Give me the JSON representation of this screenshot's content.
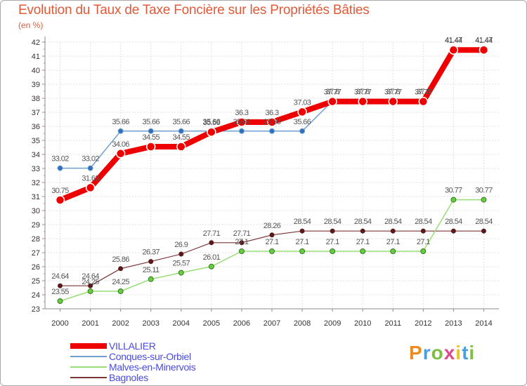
{
  "title": "Evolution du Taux de Taxe Foncière sur les Propriétés Bâties",
  "subtitle": "(en %)",
  "brand": {
    "text": "Proxiti",
    "colors": [
      "#f08c1e",
      "#4aa0d8",
      "#7cc040",
      "#e04a8c",
      "#f2c318",
      "#4aa0d8",
      "#7cc040"
    ]
  },
  "chart_data": {
    "type": "line",
    "title": "Evolution du Taux de Taxe Foncière sur les Propriétés Bâties",
    "ylabel": "(en %)",
    "xlabel": "",
    "grid": true,
    "ylim": [
      23,
      42
    ],
    "categories": [
      "2000",
      "2001",
      "2002",
      "2003",
      "2004",
      "2005",
      "2006",
      "2007",
      "2008",
      "2009",
      "2010",
      "2011",
      "2012",
      "2013",
      "2014"
    ],
    "yticks": [
      "23",
      "24",
      "25",
      "26",
      "27",
      "28",
      "29",
      "30",
      "31",
      "32",
      "33",
      "34",
      "35",
      "36",
      "37",
      "38",
      "39",
      "40",
      "41",
      "42"
    ],
    "series": [
      {
        "name": "VILLALIER",
        "color": "#ee0000",
        "values": [
          30.75,
          31.63,
          34.06,
          34.55,
          34.55,
          35.59,
          36.3,
          36.3,
          37.03,
          37.77,
          37.77,
          37.77,
          37.77,
          41.44,
          41.44
        ],
        "labels": [
          "30.75",
          "31.63",
          "34.06",
          "34.55",
          "34.55",
          "35.59",
          "36.3",
          "36.3",
          "37.03",
          "37.77",
          "37.77",
          "37.77",
          "37.77",
          "41.44",
          "41.44"
        ]
      },
      {
        "name": "Conques-sur-Orbiel",
        "color": "#6f9fd0",
        "values": [
          33.02,
          33.02,
          35.66,
          35.66,
          35.66,
          35.66,
          35.66,
          35.66,
          35.66,
          37.8,
          37.8,
          37.8,
          37.8,
          41.47,
          41.47
        ],
        "labels": [
          "33.02",
          "33.02",
          "35.66",
          "35.66",
          "35.66",
          "35.66",
          "35.66",
          "35.66",
          "35.66",
          "37.8",
          "37.8",
          "37.8",
          "37.8",
          "41.47",
          "41.47"
        ]
      },
      {
        "name": "Malves-en-Minervois",
        "color": "#99dd77",
        "values": [
          23.55,
          24.25,
          24.25,
          25.11,
          25.57,
          26.01,
          27.1,
          27.1,
          27.1,
          27.1,
          27.1,
          27.1,
          27.1,
          30.77,
          30.77
        ],
        "labels": [
          "23.55",
          "24.25",
          "24.25",
          "25.11",
          "25.57",
          "26.01",
          "27.1",
          "27.1",
          "27.1",
          "27.1",
          "27.1",
          "27.1",
          "27.1",
          "30.77",
          "30.77"
        ]
      },
      {
        "name": "Bagnoles",
        "color": "#7a3535",
        "values": [
          24.64,
          24.64,
          25.86,
          26.37,
          26.9,
          27.71,
          27.71,
          28.26,
          28.54,
          28.54,
          28.54,
          28.54,
          28.54,
          28.54,
          28.54
        ],
        "labels": [
          "24.64",
          "24.64",
          "25.86",
          "26.37",
          "26.9",
          "27.71",
          "27.71",
          "28.26",
          "28.54",
          "28.54",
          "28.54",
          "28.54",
          "28.54",
          "28.54",
          "28.54"
        ]
      }
    ]
  }
}
